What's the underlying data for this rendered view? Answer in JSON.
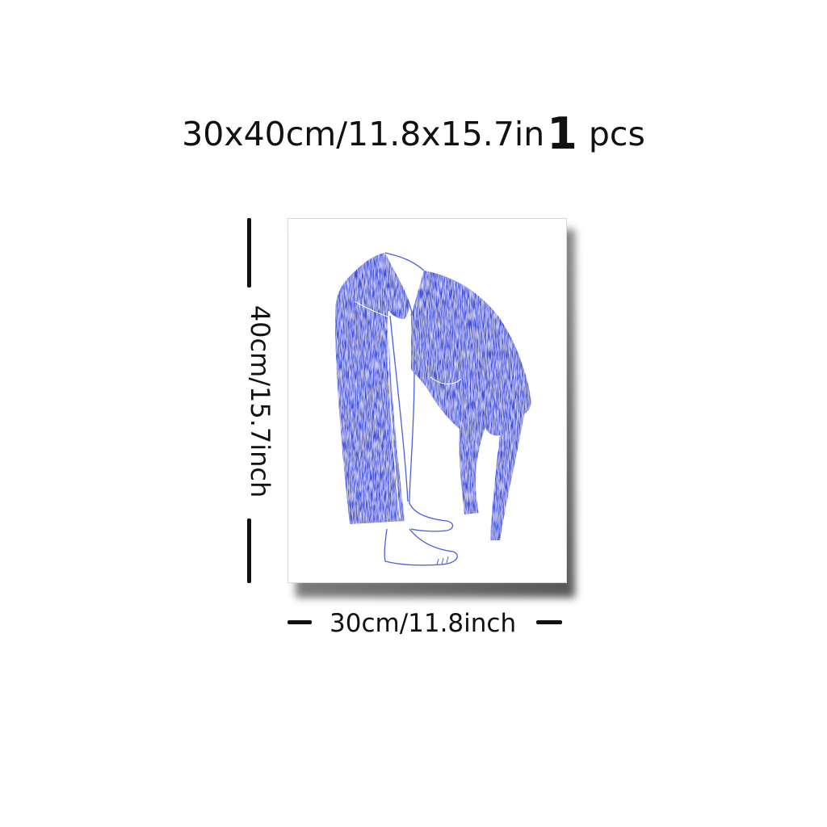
{
  "title": {
    "size_text": "30x40cm/11.8x15.7in",
    "quantity": "1",
    "unit": "pcs"
  },
  "dimensions": {
    "height_label": "40cm/15.7inch",
    "width_label": "30cm/11.8inch"
  },
  "artwork": {
    "figure_color": "#3d4fdb",
    "outline_color": "#4a5ee0"
  }
}
